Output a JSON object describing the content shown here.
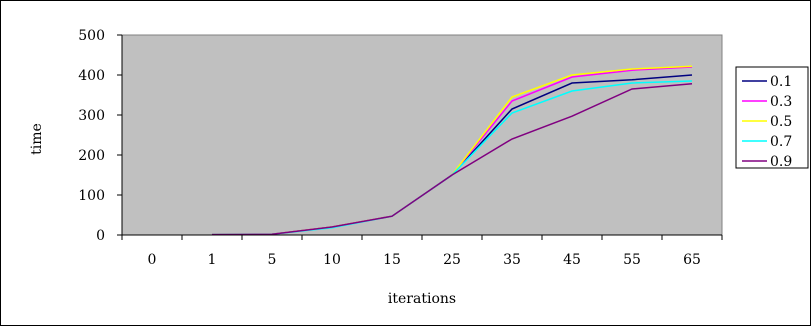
{
  "chart_data": {
    "type": "line",
    "title": "",
    "xlabel": "iterations",
    "ylabel": "time",
    "categories": [
      "0",
      "1",
      "5",
      "10",
      "15",
      "25",
      "35",
      "45",
      "55",
      "65"
    ],
    "ylim": [
      0,
      500
    ],
    "yticks": [
      0,
      100,
      200,
      300,
      400,
      500
    ],
    "grid": false,
    "legend_position": "right",
    "plot_background": "#c0c0c0",
    "series": [
      {
        "name": "0.1",
        "color": "#000080",
        "values": [
          null,
          1,
          2,
          20,
          47,
          150,
          315,
          380,
          388,
          400
        ]
      },
      {
        "name": "0.3",
        "color": "#ff00ff",
        "values": [
          null,
          1,
          2,
          20,
          47,
          150,
          335,
          395,
          412,
          420
        ]
      },
      {
        "name": "0.5",
        "color": "#ffff00",
        "values": [
          null,
          1,
          2,
          20,
          47,
          150,
          345,
          400,
          415,
          422
        ]
      },
      {
        "name": "0.7",
        "color": "#00ffff",
        "values": [
          null,
          1,
          2,
          18,
          47,
          150,
          305,
          360,
          380,
          385
        ]
      },
      {
        "name": "0.9",
        "color": "#800080",
        "values": [
          null,
          1,
          2,
          20,
          47,
          150,
          240,
          297,
          365,
          378
        ]
      }
    ]
  }
}
